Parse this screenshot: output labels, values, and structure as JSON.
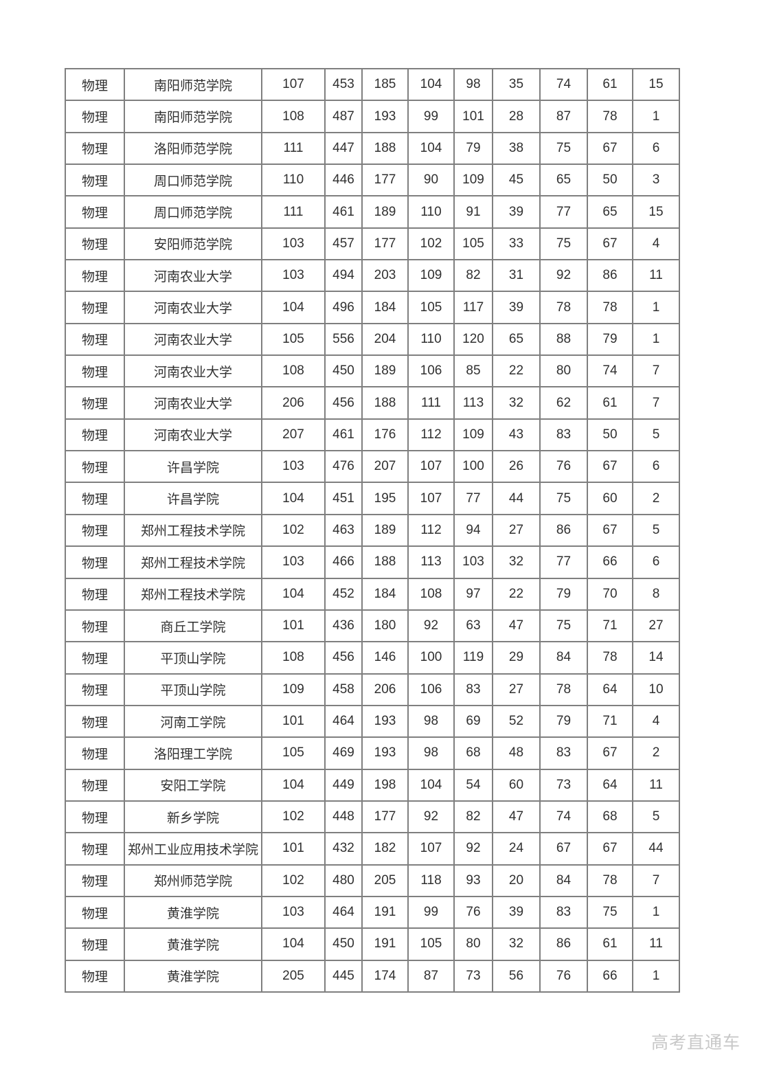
{
  "page": {
    "watermark": "高考直通车"
  },
  "table": {
    "rows": [
      [
        "物理",
        "南阳师范学院",
        "107",
        "453",
        "185",
        "104",
        "98",
        "35",
        "74",
        "61",
        "15"
      ],
      [
        "物理",
        "南阳师范学院",
        "108",
        "487",
        "193",
        "99",
        "101",
        "28",
        "87",
        "78",
        "1"
      ],
      [
        "物理",
        "洛阳师范学院",
        "111",
        "447",
        "188",
        "104",
        "79",
        "38",
        "75",
        "67",
        "6"
      ],
      [
        "物理",
        "周口师范学院",
        "110",
        "446",
        "177",
        "90",
        "109",
        "45",
        "65",
        "50",
        "3"
      ],
      [
        "物理",
        "周口师范学院",
        "111",
        "461",
        "189",
        "110",
        "91",
        "39",
        "77",
        "65",
        "15"
      ],
      [
        "物理",
        "安阳师范学院",
        "103",
        "457",
        "177",
        "102",
        "105",
        "33",
        "75",
        "67",
        "4"
      ],
      [
        "物理",
        "河南农业大学",
        "103",
        "494",
        "203",
        "109",
        "82",
        "31",
        "92",
        "86",
        "11"
      ],
      [
        "物理",
        "河南农业大学",
        "104",
        "496",
        "184",
        "105",
        "117",
        "39",
        "78",
        "78",
        "1"
      ],
      [
        "物理",
        "河南农业大学",
        "105",
        "556",
        "204",
        "110",
        "120",
        "65",
        "88",
        "79",
        "1"
      ],
      [
        "物理",
        "河南农业大学",
        "108",
        "450",
        "189",
        "106",
        "85",
        "22",
        "80",
        "74",
        "7"
      ],
      [
        "物理",
        "河南农业大学",
        "206",
        "456",
        "188",
        "111",
        "113",
        "32",
        "62",
        "61",
        "7"
      ],
      [
        "物理",
        "河南农业大学",
        "207",
        "461",
        "176",
        "112",
        "109",
        "43",
        "83",
        "50",
        "5"
      ],
      [
        "物理",
        "许昌学院",
        "103",
        "476",
        "207",
        "107",
        "100",
        "26",
        "76",
        "67",
        "6"
      ],
      [
        "物理",
        "许昌学院",
        "104",
        "451",
        "195",
        "107",
        "77",
        "44",
        "75",
        "60",
        "2"
      ],
      [
        "物理",
        "郑州工程技术学院",
        "102",
        "463",
        "189",
        "112",
        "94",
        "27",
        "86",
        "67",
        "5"
      ],
      [
        "物理",
        "郑州工程技术学院",
        "103",
        "466",
        "188",
        "113",
        "103",
        "32",
        "77",
        "66",
        "6"
      ],
      [
        "物理",
        "郑州工程技术学院",
        "104",
        "452",
        "184",
        "108",
        "97",
        "22",
        "79",
        "70",
        "8"
      ],
      [
        "物理",
        "商丘工学院",
        "101",
        "436",
        "180",
        "92",
        "63",
        "47",
        "75",
        "71",
        "27"
      ],
      [
        "物理",
        "平顶山学院",
        "108",
        "456",
        "146",
        "100",
        "119",
        "29",
        "84",
        "78",
        "14"
      ],
      [
        "物理",
        "平顶山学院",
        "109",
        "458",
        "206",
        "106",
        "83",
        "27",
        "78",
        "64",
        "10"
      ],
      [
        "物理",
        "河南工学院",
        "101",
        "464",
        "193",
        "98",
        "69",
        "52",
        "79",
        "71",
        "4"
      ],
      [
        "物理",
        "洛阳理工学院",
        "105",
        "469",
        "193",
        "98",
        "68",
        "48",
        "83",
        "67",
        "2"
      ],
      [
        "物理",
        "安阳工学院",
        "104",
        "449",
        "198",
        "104",
        "54",
        "60",
        "73",
        "64",
        "11"
      ],
      [
        "物理",
        "新乡学院",
        "102",
        "448",
        "177",
        "92",
        "82",
        "47",
        "74",
        "68",
        "5"
      ],
      [
        "物理",
        "郑州工业应用技术学院",
        "101",
        "432",
        "182",
        "107",
        "92",
        "24",
        "67",
        "67",
        "44"
      ],
      [
        "物理",
        "郑州师范学院",
        "102",
        "480",
        "205",
        "118",
        "93",
        "20",
        "84",
        "78",
        "7"
      ],
      [
        "物理",
        "黄淮学院",
        "103",
        "464",
        "191",
        "99",
        "76",
        "39",
        "83",
        "75",
        "1"
      ],
      [
        "物理",
        "黄淮学院",
        "104",
        "450",
        "191",
        "105",
        "80",
        "32",
        "86",
        "61",
        "11"
      ],
      [
        "物理",
        "黄淮学院",
        "205",
        "445",
        "174",
        "87",
        "73",
        "56",
        "76",
        "66",
        "1"
      ]
    ]
  },
  "colors": {
    "border": "#7f7f7f",
    "text": "#303030",
    "watermark_text": "#c8c8c8",
    "background": "#ffffff"
  }
}
